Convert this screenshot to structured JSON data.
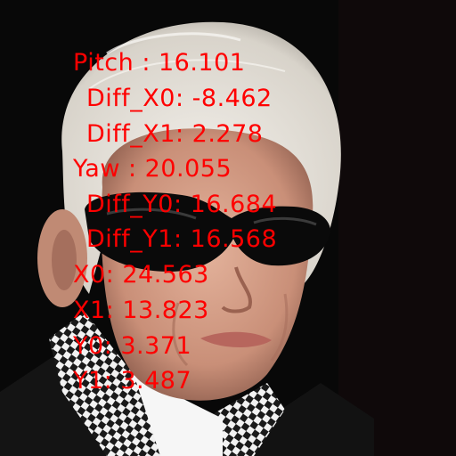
{
  "scene": {
    "subject": "photo",
    "colors": {
      "background": "#080808",
      "hair": "#e6e2da",
      "skin": "#d9a68f",
      "sunglasses": "#0a0a0a",
      "shirt_check": "#f2f2f2",
      "overlay_text": "#ff0000"
    }
  },
  "overlay": {
    "lines": [
      {
        "id": "pitch",
        "text": "Pitch : 16.101"
      },
      {
        "id": "diff-x0",
        "text": "Diff_X0: -8.462"
      },
      {
        "id": "diff-x1",
        "text": "Diff_X1: 2.278"
      },
      {
        "id": "yaw",
        "text": "Yaw : 20.055"
      },
      {
        "id": "diff-y0",
        "text": "Diff_Y0: 16.684"
      },
      {
        "id": "diff-y1",
        "text": "Diff_Y1: 16.568"
      },
      {
        "id": "x0",
        "text": "X0: 24.563"
      },
      {
        "id": "x1",
        "text": "X1: 13.823"
      },
      {
        "id": "y0",
        "text": "Y0: 3.371"
      },
      {
        "id": "y1",
        "text": "Y1: 3.487"
      }
    ]
  }
}
